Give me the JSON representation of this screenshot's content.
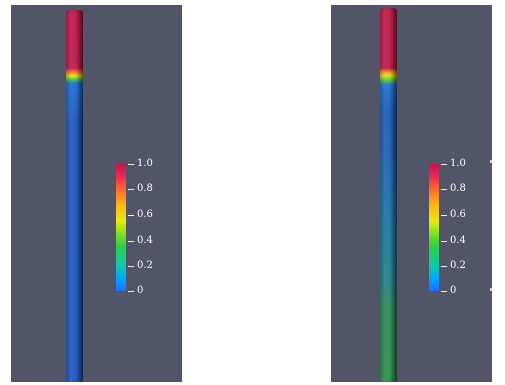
{
  "colorbar": {
    "ticks": [
      "1.0",
      "0.8",
      "0.6",
      "0.4",
      "0.2",
      "0"
    ]
  },
  "left_panel": {
    "tube_colors": {
      "top": "#c21847",
      "transition": [
        "#ff8a1a",
        "#eade14",
        "#4ad139"
      ],
      "body": "#1e57c0"
    }
  },
  "right_panel": {
    "tube_colors": {
      "top": "#c21847",
      "transition": [
        "#ff9a1a",
        "#e2db14",
        "#55cc35"
      ],
      "body_upper": "#1c5cb8",
      "body_middle": "#1f7a9e",
      "body_lower": "#2f8b58"
    }
  }
}
